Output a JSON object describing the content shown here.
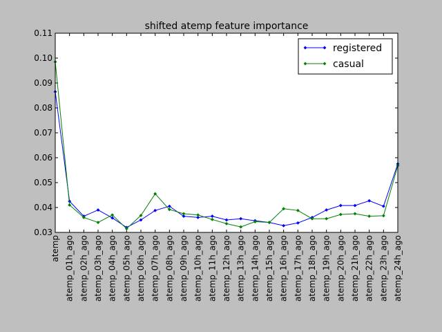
{
  "chart_data": {
    "type": "line",
    "title": "shifted atemp feature importance",
    "xlabel": "",
    "ylabel": "",
    "categories": [
      "atemp",
      "atemp_01h_ago",
      "atemp_02h_ago",
      "atemp_03h_ago",
      "atemp_04h_ago",
      "atemp_05h_ago",
      "atemp_06h_ago",
      "atemp_07h_ago",
      "atemp_08h_ago",
      "atemp_09h_ago",
      "atemp_10h_ago",
      "atemp_11h_ago",
      "atemp_12h_ago",
      "atemp_13h_ago",
      "atemp_14h_ago",
      "atemp_15h_ago",
      "atemp_16h_ago",
      "atemp_17h_ago",
      "atemp_18h_ago",
      "atemp_19h_ago",
      "atemp_20h_ago",
      "atemp_21h_ago",
      "atemp_22h_ago",
      "atemp_23h_ago",
      "atemp_24h_ago"
    ],
    "series": [
      {
        "name": "registered",
        "color": "#0000ff",
        "values": [
          0.0865,
          0.0425,
          0.0365,
          0.039,
          0.0358,
          0.032,
          0.035,
          0.0388,
          0.0405,
          0.0365,
          0.036,
          0.0365,
          0.035,
          0.0355,
          0.0347,
          0.034,
          0.0327,
          0.0338,
          0.036,
          0.039,
          0.0408,
          0.0408,
          0.0427,
          0.0405,
          0.0575
        ]
      },
      {
        "name": "casual",
        "color": "#008000",
        "values": [
          0.0985,
          0.041,
          0.036,
          0.034,
          0.037,
          0.0315,
          0.0368,
          0.0455,
          0.0392,
          0.0375,
          0.037,
          0.0352,
          0.0335,
          0.0322,
          0.0343,
          0.034,
          0.0395,
          0.0388,
          0.0355,
          0.0355,
          0.0372,
          0.0375,
          0.0365,
          0.0367,
          0.0568
        ]
      }
    ],
    "ylim": [
      0.03,
      0.11
    ],
    "yticks": [
      "0.03",
      "0.04",
      "0.05",
      "0.06",
      "0.07",
      "0.08",
      "0.09",
      "0.10",
      "0.11"
    ],
    "grid": false,
    "legend_position": "top-right"
  }
}
